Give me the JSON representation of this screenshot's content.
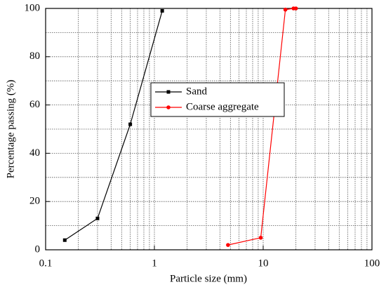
{
  "chart_data": {
    "type": "line",
    "xlabel": "Particle size (mm)",
    "ylabel": "Percentage passing (%)",
    "xscale": "log",
    "xlim": [
      0.1,
      100
    ],
    "xticks": [
      0.1,
      1,
      10,
      100
    ],
    "ylim": [
      0,
      100
    ],
    "yticks": [
      0,
      20,
      40,
      60,
      80,
      100
    ],
    "grid": true,
    "legend": "center",
    "series": [
      {
        "name": "Sand",
        "color": "#000000",
        "marker": "square",
        "x": [
          0.15,
          0.3,
          0.6,
          1.18
        ],
        "values": [
          4,
          13,
          52,
          99
        ]
      },
      {
        "name": "Coarse aggregate",
        "color": "#ff0000",
        "marker": "circle",
        "x": [
          4.75,
          9.5,
          16,
          19,
          20
        ],
        "values": [
          2,
          5,
          99.5,
          100,
          100
        ]
      }
    ]
  }
}
